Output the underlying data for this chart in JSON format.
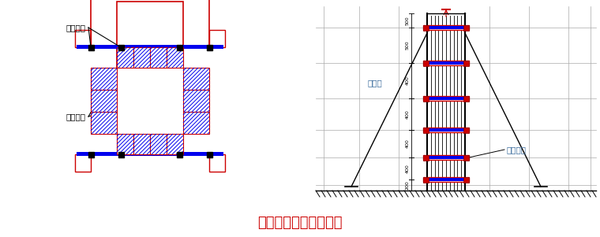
{
  "title": "柱模板安装支撑示意图",
  "title_color": "#cc0000",
  "title_fontsize": 13,
  "bg_color": "#ffffff",
  "label_duila": "对拉螺杆",
  "label_caoguo": "槽钢抱箍",
  "label_manzujia": "满堂架",
  "label_caoguo2": "槽钢抱箍",
  "red": "#cc0000",
  "blue": "#0000ee",
  "black": "#000000",
  "gray": "#888888"
}
